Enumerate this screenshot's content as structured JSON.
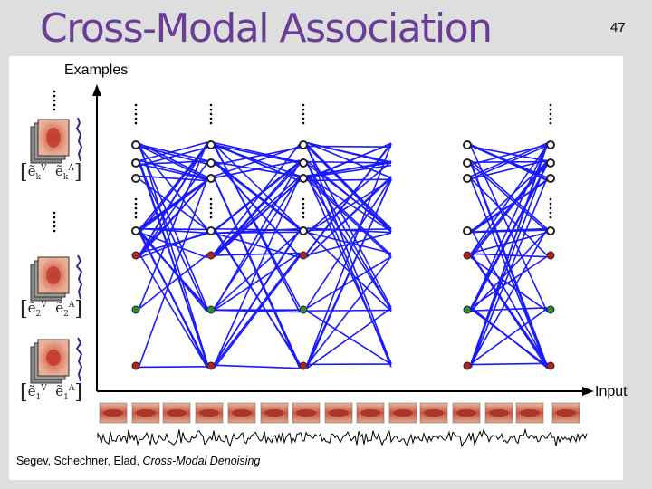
{
  "slide": {
    "title": "Cross-Modal Association",
    "number": "47",
    "section_label": "Examples",
    "axis_label": "Input",
    "citation_authors": "Segev, Schechner, Elad, ",
    "citation_title": "Cross-Modal Denoising"
  },
  "examples": [
    {
      "index": "k"
    },
    {
      "index": "2"
    },
    {
      "index": "1"
    }
  ],
  "colors": {
    "title": "#6a3d97",
    "frame": "#dedede",
    "edges": "#1a1aff",
    "node_gray": "#555555",
    "node_red": "#b22222",
    "node_green": "#2e8b3e"
  }
}
